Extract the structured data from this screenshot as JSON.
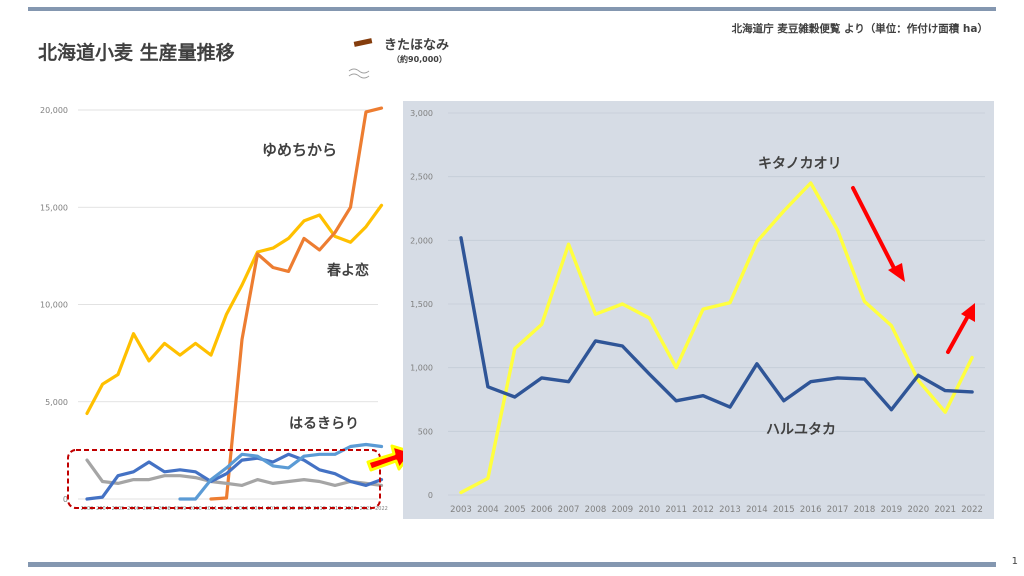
{
  "header": {
    "title": "北海道小麦 生産量推移",
    "source": "北海道庁 麦豆雑穀便覧 より（単位：作付け面積 ha）",
    "page_number": "1"
  },
  "legend_kitahonami": {
    "name": "きたほなみ",
    "approx": "（約90,000）",
    "color": "#843c0c"
  },
  "colors": {
    "yumechikara": "#ed7d31",
    "haruyokoi": "#ffc000",
    "harukirari": "#5b9bd5",
    "haruyutaka_left": "#4472c4",
    "gray_series": "#a5a5a5",
    "kitanokaori": "#ffff3f",
    "haruyutaka": "#2f5597",
    "right_panel_bg": "#d6dce5",
    "highlight_box": "#c00000",
    "arrow_red": "#ff0000",
    "arrow_outline": "#ffff00"
  },
  "chart_data": [
    {
      "type": "line",
      "x": [
        "2003",
        "2004",
        "2005",
        "2006",
        "2007",
        "2008",
        "2009",
        "2010",
        "2011",
        "2012",
        "2013",
        "2014",
        "2015",
        "2016",
        "2017",
        "2018",
        "2019",
        "2020",
        "2021",
        "2022"
      ],
      "ylim": [
        0,
        20000
      ],
      "yticks": [
        "0",
        "5,000",
        "10,000",
        "15,000",
        "20,000"
      ],
      "series_labels": {
        "yumechikara": "ゆめちから",
        "haruyokoi": "春よ恋",
        "harukirari": "はるきらり"
      },
      "series": [
        {
          "key": "haruyokoi",
          "values": [
            4400,
            5900,
            6400,
            8500,
            7100,
            8000,
            7400,
            8000,
            7400,
            9500,
            11000,
            12700,
            12900,
            13400,
            14300,
            14600,
            13500,
            13200,
            14000,
            15100
          ]
        },
        {
          "key": "yumechikara",
          "values": [
            null,
            null,
            null,
            null,
            null,
            null,
            null,
            null,
            0,
            50,
            8200,
            12600,
            11900,
            11700,
            13400,
            12800,
            13700,
            15000,
            19900,
            20100
          ]
        },
        {
          "key": "gray_series",
          "values": [
            2000,
            900,
            800,
            1000,
            1000,
            1200,
            1200,
            1100,
            900,
            800,
            700,
            1000,
            800,
            900,
            1000,
            900,
            700,
            900,
            800,
            700
          ]
        },
        {
          "key": "haruyutaka_left",
          "values": [
            0,
            100,
            1200,
            1400,
            1900,
            1400,
            1500,
            1400,
            900,
            1300,
            2000,
            2100,
            1900,
            2300,
            2000,
            1500,
            1300,
            900,
            700,
            1000
          ]
        },
        {
          "key": "harukirari",
          "values": [
            null,
            null,
            null,
            null,
            null,
            null,
            0,
            0,
            1000,
            1600,
            2300,
            2200,
            1700,
            1600,
            2200,
            2300,
            2300,
            2700,
            2800,
            2700
          ]
        }
      ]
    },
    {
      "type": "line",
      "x": [
        "2003",
        "2004",
        "2005",
        "2006",
        "2007",
        "2008",
        "2009",
        "2010",
        "2011",
        "2012",
        "2013",
        "2014",
        "2015",
        "2016",
        "2017",
        "2018",
        "2019",
        "2020",
        "2021",
        "2022"
      ],
      "ylim": [
        0,
        3000
      ],
      "yticks": [
        "0",
        "500",
        "1,000",
        "1,500",
        "2,000",
        "2,500",
        "3,000"
      ],
      "series_labels": {
        "kitanokaori": "キタノカオリ",
        "haruyutaka": "ハルユタカ"
      },
      "series": [
        {
          "key": "kitanokaori",
          "values": [
            20,
            130,
            1150,
            1340,
            1970,
            1420,
            1500,
            1390,
            1000,
            1460,
            1510,
            1990,
            2230,
            2450,
            2080,
            1520,
            1330,
            900,
            650,
            1080
          ]
        },
        {
          "key": "haruyutaka",
          "values": [
            2020,
            850,
            770,
            920,
            890,
            1210,
            1170,
            950,
            740,
            780,
            690,
            1030,
            740,
            890,
            920,
            910,
            670,
            940,
            820,
            810
          ]
        }
      ]
    }
  ]
}
